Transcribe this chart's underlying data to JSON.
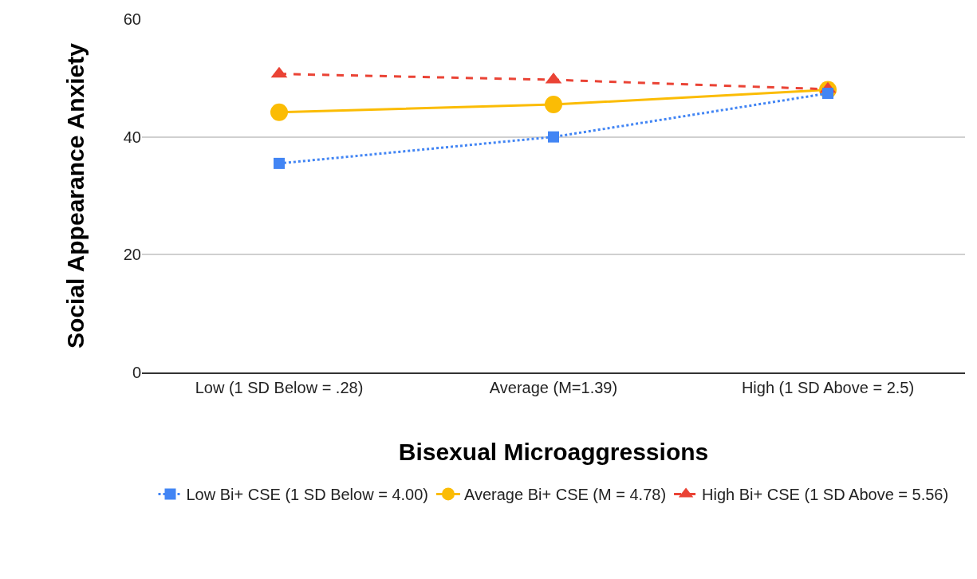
{
  "chart_data": {
    "type": "line",
    "xlabel": "Bisexual Microaggressions",
    "ylabel": "Social Appearance Anxiety",
    "categories": [
      "Low (1 SD Below = .28)",
      "Average (M=1.39)",
      "High (1 SD Above = 2.5)"
    ],
    "series": [
      {
        "name": "Low Bi+ CSE (1 SD Below = 4.00)",
        "color": "#4285f4",
        "values": [
          35.5,
          40,
          47.4
        ],
        "marker": "square",
        "line_style": "dotted"
      },
      {
        "name": "Average Bi+ CSE (M = 4.78)",
        "color": "#fbbc04",
        "values": [
          44.2,
          45.5,
          48
        ],
        "marker": "circle",
        "line_style": "solid"
      },
      {
        "name": "High Bi+ CSE (1 SD Above = 5.56)",
        "color": "#ea4335",
        "values": [
          50.7,
          49.7,
          48.1
        ],
        "marker": "triangle",
        "line_style": "dashed"
      }
    ],
    "ylim": [
      0,
      60
    ],
    "yticks": [
      0,
      20,
      40,
      60
    ],
    "grid": "y",
    "legend": "bottom"
  }
}
